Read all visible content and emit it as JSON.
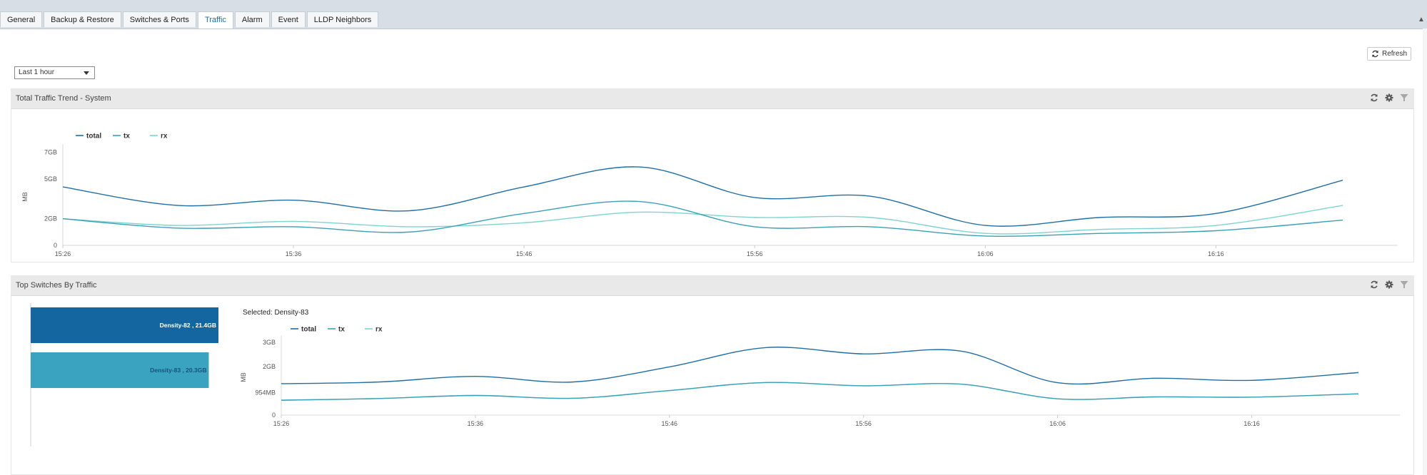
{
  "tabs": [
    {
      "label": "General"
    },
    {
      "label": "Backup & Restore"
    },
    {
      "label": "Switches & Ports"
    },
    {
      "label": "Traffic",
      "active": true
    },
    {
      "label": "Alarm"
    },
    {
      "label": "Event"
    },
    {
      "label": "LLDP Neighbors"
    }
  ],
  "toolbar": {
    "refresh_label": "Refresh"
  },
  "time_range": {
    "selected": "Last 1 hour"
  },
  "colors": {
    "total": "#1f6ea5",
    "tx": "#3aa0b8",
    "rx": "#7fd3d0",
    "bar_primary": "#13669f",
    "bar_secondary": "#3aa3bf"
  },
  "panels": {
    "total_traffic": {
      "title": "Total Traffic Trend - System"
    },
    "top_switches": {
      "title": "Top Switches By Traffic",
      "selected_label": "Selected: Density-83"
    }
  },
  "chart_data": [
    {
      "type": "line",
      "legend": [
        "total",
        "tx",
        "rx"
      ],
      "ylabel": "MB",
      "y_ticks": [
        {
          "label": "0",
          "value": 0
        },
        {
          "label": "2GB",
          "value": 2
        },
        {
          "label": "5GB",
          "value": 5
        },
        {
          "label": "7GB",
          "value": 7
        }
      ],
      "ylim": [
        0,
        7.3
      ],
      "x_ticks": [
        "15:26",
        "15:36",
        "15:46",
        "15:56",
        "16:06",
        "16:16"
      ],
      "xlim": [
        0,
        55.5
      ],
      "series": [
        {
          "name": "total",
          "x": [
            0,
            5,
            10,
            15,
            20,
            25,
            30,
            35,
            40,
            45,
            50,
            55.5
          ],
          "values": [
            4.4,
            3.0,
            3.4,
            2.6,
            4.4,
            5.9,
            3.6,
            3.7,
            1.5,
            2.1,
            2.4,
            4.9
          ]
        },
        {
          "name": "tx",
          "x": [
            0,
            5,
            10,
            15,
            20,
            25,
            30,
            35,
            40,
            45,
            50,
            55.5
          ],
          "values": [
            2.0,
            1.3,
            1.4,
            1.0,
            2.4,
            3.3,
            1.4,
            1.4,
            0.7,
            0.9,
            1.1,
            1.9
          ]
        },
        {
          "name": "rx",
          "x": [
            0,
            5,
            10,
            15,
            20,
            25,
            30,
            35,
            40,
            45,
            50,
            55.5
          ],
          "values": [
            2.0,
            1.5,
            1.8,
            1.4,
            1.7,
            2.5,
            2.1,
            2.1,
            0.9,
            1.2,
            1.5,
            3.0
          ]
        }
      ]
    },
    {
      "type": "bar",
      "orientation": "horizontal",
      "categories": [
        "Density-82",
        "Density-83"
      ],
      "values": [
        21.4,
        20.3
      ],
      "labels": [
        "Density-82 , 21.4GB",
        "Density-83 , 20.3GB"
      ],
      "unit": "GB"
    },
    {
      "type": "line",
      "legend": [
        "total",
        "tx",
        "rx"
      ],
      "ylabel": "MB",
      "y_ticks": [
        {
          "label": "0",
          "value": 0
        },
        {
          "label": "954MB",
          "value": 954
        },
        {
          "label": "2GB",
          "value": 2048
        },
        {
          "label": "3GB",
          "value": 3072
        }
      ],
      "ylim": [
        0,
        3200
      ],
      "x_ticks": [
        "15:26",
        "15:36",
        "15:46",
        "15:56",
        "16:06",
        "16:16"
      ],
      "xlim": [
        0,
        55.5
      ],
      "series": [
        {
          "name": "total",
          "x": [
            0,
            5,
            10,
            15,
            20,
            25,
            30,
            35,
            40,
            45,
            50,
            55.5
          ],
          "values": [
            1330,
            1400,
            1640,
            1400,
            2040,
            2860,
            2590,
            2710,
            1370,
            1560,
            1470,
            1800
          ]
        },
        {
          "name": "tx",
          "x": [
            0,
            5,
            10,
            15,
            20,
            25,
            30,
            35,
            40,
            45,
            50,
            55.5
          ],
          "values": [
            630,
            700,
            830,
            710,
            1040,
            1380,
            1240,
            1310,
            690,
            770,
            760,
            900
          ]
        },
        {
          "name": "rx",
          "x": [
            0,
            5,
            10,
            15,
            20,
            25,
            30,
            35,
            40,
            45,
            50,
            55.5
          ],
          "values": [
            630,
            700,
            830,
            710,
            1040,
            1380,
            1240,
            1310,
            690,
            770,
            760,
            900
          ]
        }
      ]
    }
  ]
}
